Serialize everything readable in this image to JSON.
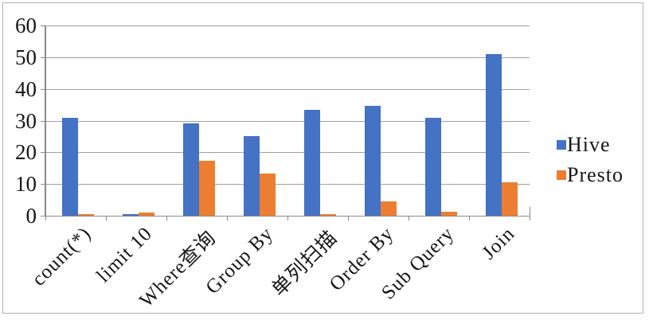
{
  "window": {
    "background": "#ffffff",
    "frame_border_color": "#b2b2b2"
  },
  "chart_data": {
    "type": "bar",
    "title": "",
    "xlabel": "",
    "ylabel": "",
    "categories": [
      "count(*)",
      "limit 10",
      "Where查询",
      "Group By",
      "单列扫描",
      "Order By",
      "Sub Query",
      "Join"
    ],
    "series": [
      {
        "name": "Hive",
        "color": "#4472C4",
        "values": [
          31,
          0.6,
          29,
          25,
          33.4,
          34.7,
          30.9,
          50.9
        ]
      },
      {
        "name": "Presto",
        "color": "#ED7D31",
        "values": [
          0.6,
          0.9,
          17.2,
          13.4,
          0.5,
          4.4,
          1.2,
          10.6
        ]
      }
    ],
    "ylim": [
      0,
      60
    ],
    "y_ticks": [
      0,
      10,
      20,
      30,
      40,
      50,
      60
    ],
    "grid": true,
    "legend_position": "right",
    "gridline_color": "#a0a0a0",
    "axis_color": "#8a8a8a",
    "text_color": "#161616"
  }
}
